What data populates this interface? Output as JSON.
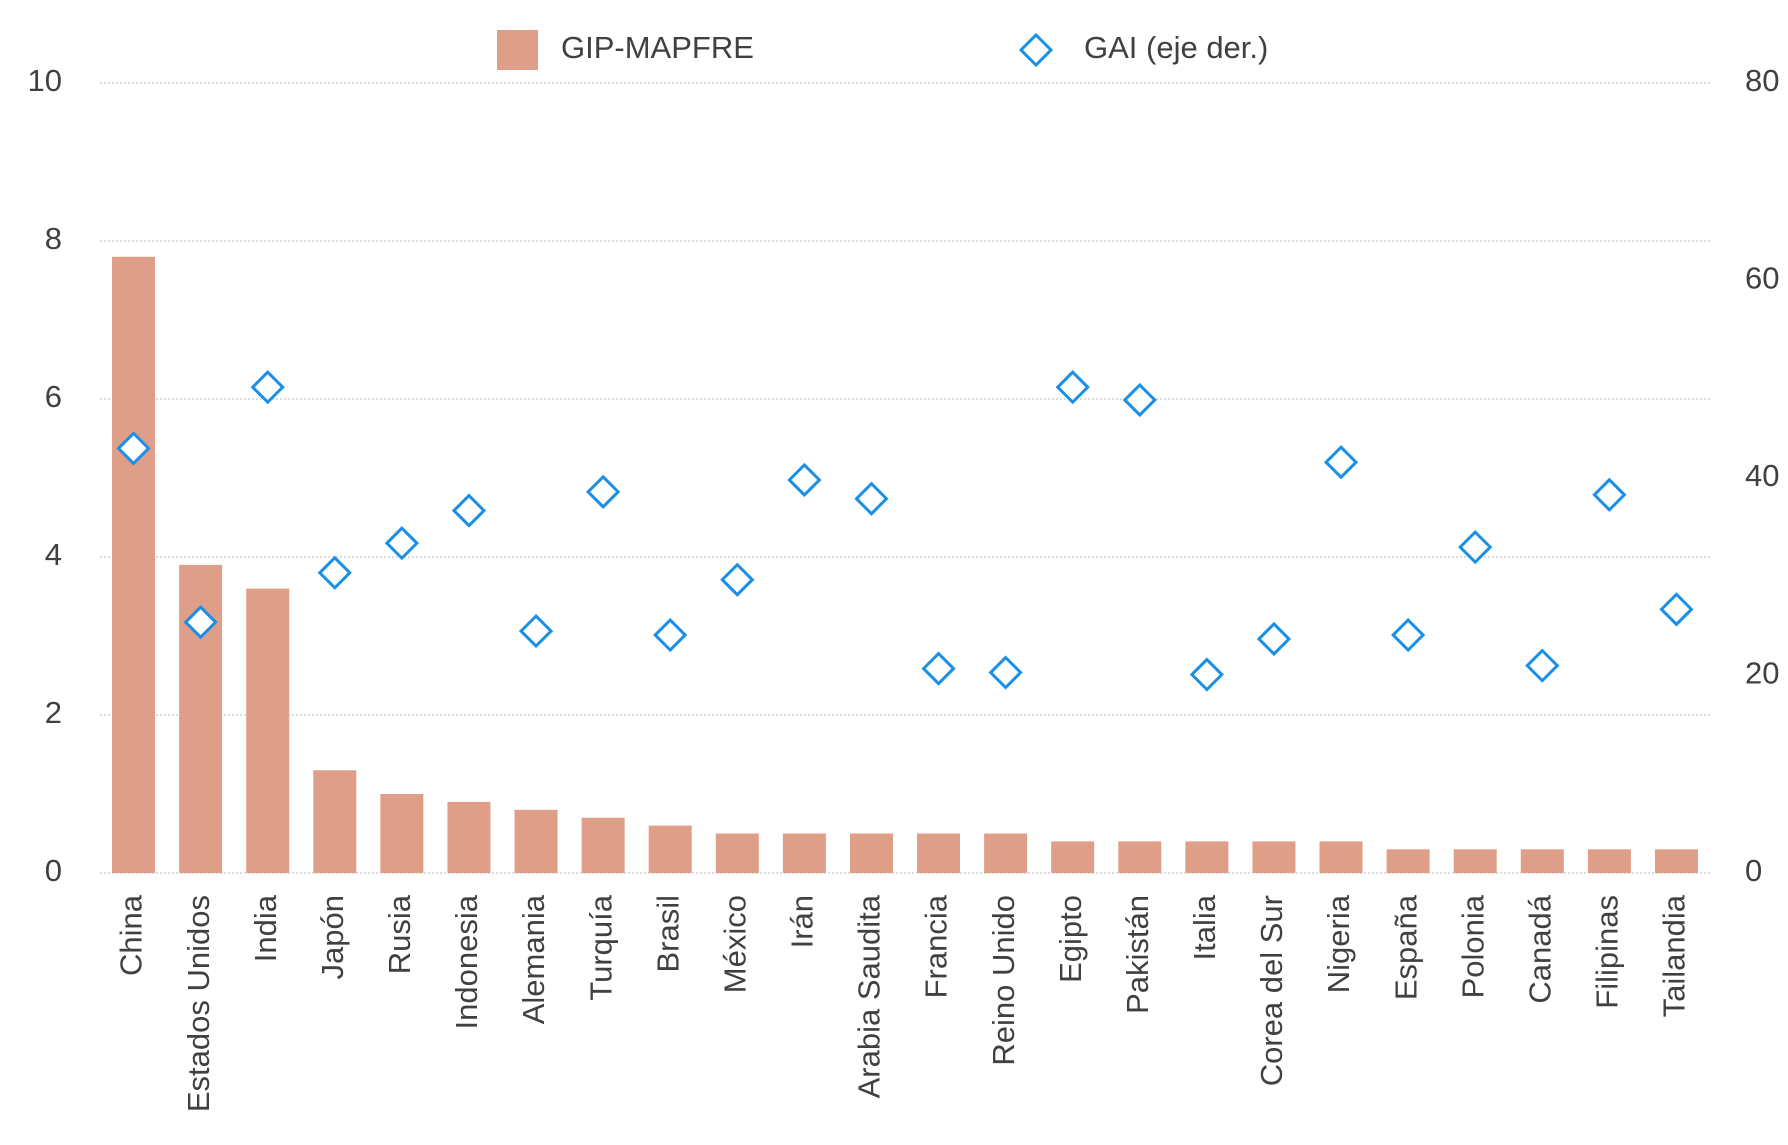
{
  "chart_data": {
    "type": "bar",
    "categories": [
      "China",
      "Estados Unidos",
      "India",
      "Japón",
      "Rusia",
      "Indonesia",
      "Alemania",
      "Turquía",
      "Brasil",
      "México",
      "Irán",
      "Arabia Saudita",
      "Francia",
      "Reino Unido",
      "Egipto",
      "Pakistán",
      "Italia",
      "Corea del Sur",
      "Nigeria",
      "España",
      "Polonia",
      "Canadá",
      "Filipinas",
      "Tailandia"
    ],
    "series": [
      {
        "name": "GIP-MAPFRE",
        "color": "#df9e88",
        "values": [
          7.8,
          3.9,
          3.6,
          1.3,
          1.0,
          0.9,
          0.8,
          0.7,
          0.6,
          0.5,
          0.5,
          0.5,
          0.5,
          0.5,
          0.4,
          0.4,
          0.4,
          0.4,
          0.4,
          0.3,
          0.3,
          0.3,
          0.3,
          0.3
        ]
      },
      {
        "name": "GAI (eje der.)",
        "color": "#1a8fe8",
        "axis": "y2",
        "marker": "diamond",
        "values": [
          43.0,
          25.4,
          49.2,
          30.4,
          33.4,
          36.7,
          24.5,
          38.6,
          24.1,
          29.7,
          39.8,
          37.9,
          20.7,
          20.3,
          49.2,
          47.9,
          20.1,
          23.7,
          41.6,
          24.1,
          33.0,
          21.0,
          38.3,
          26.7
        ]
      }
    ],
    "ylim": [
      0,
      10
    ],
    "yticks": [
      0,
      2,
      4,
      6,
      8,
      10
    ],
    "y2lim": [
      0,
      80
    ],
    "y2ticks": [
      0,
      20,
      40,
      60,
      80
    ],
    "grid": true,
    "legend": "top"
  }
}
